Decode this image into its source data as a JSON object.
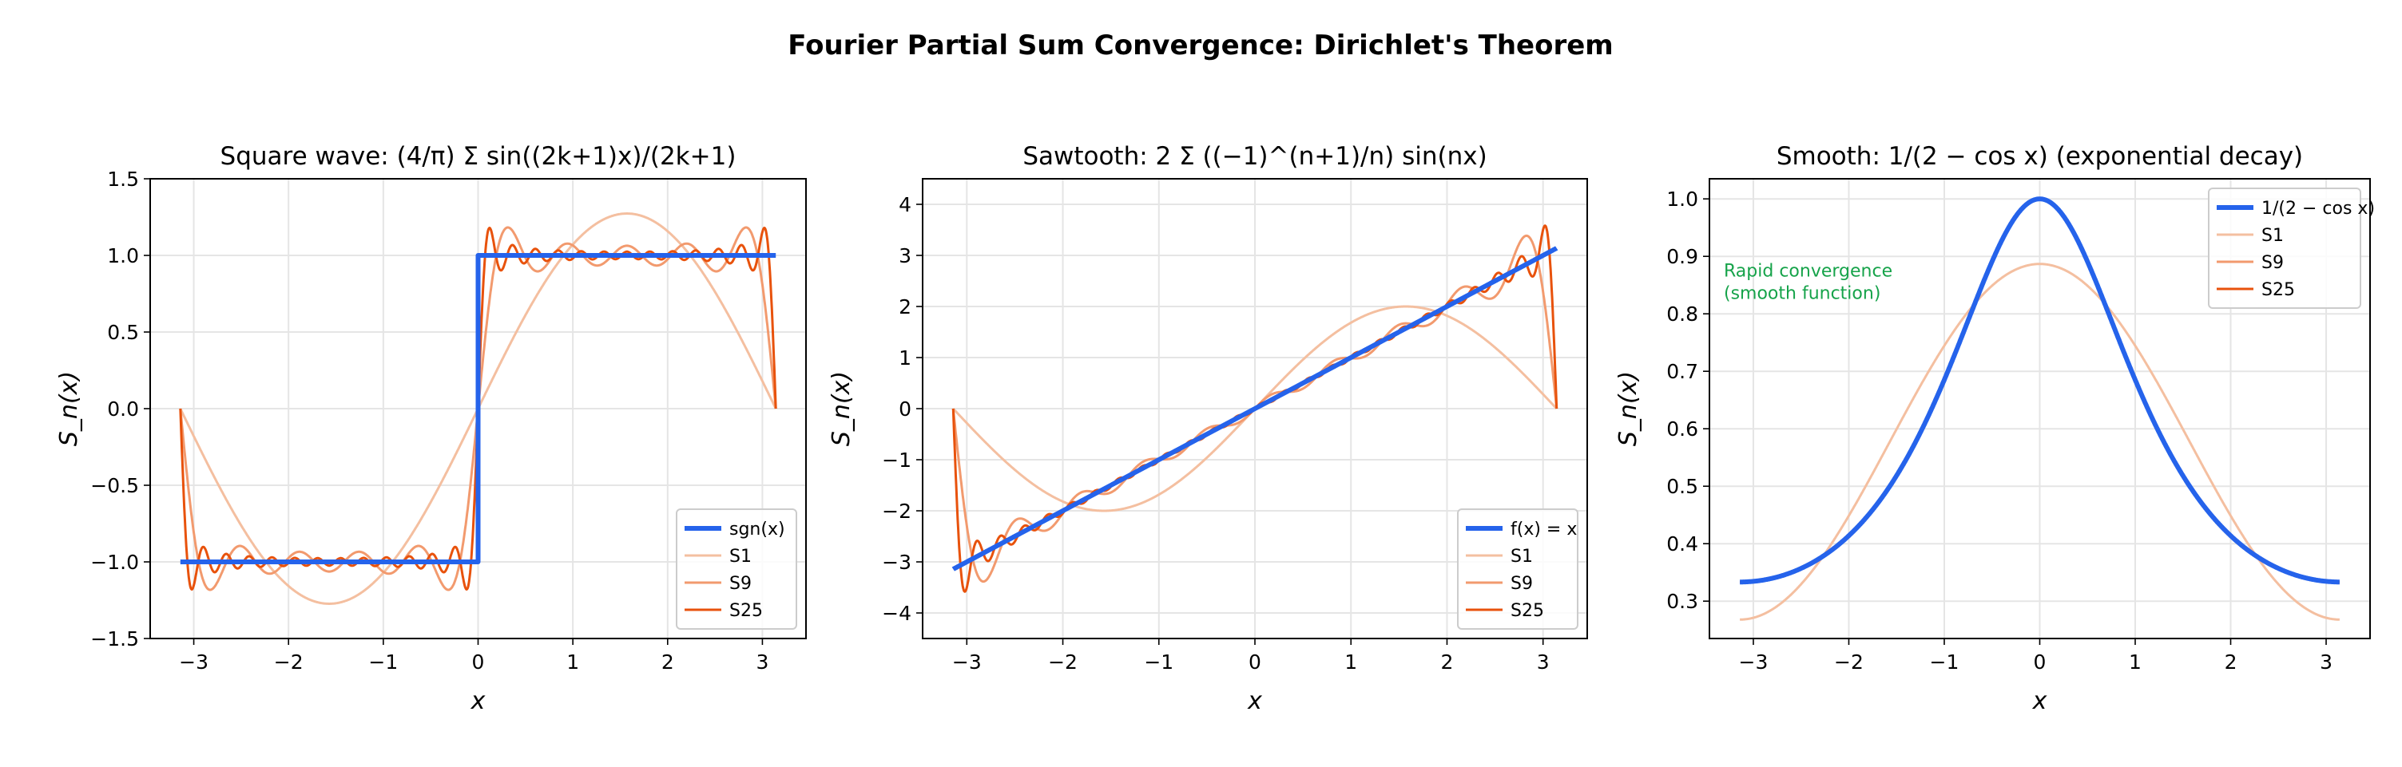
{
  "title": "Fourier Partial Sum Convergence: Dirichlet's Theorem",
  "colors": {
    "target": "#2563eb",
    "S1": "#f4bfa0",
    "S9": "#f29a6e",
    "S25": "#e8520c",
    "annotation": "#16a34a",
    "grid": "#e5e5e5"
  },
  "chart_data": [
    {
      "type": "line",
      "title": "Square wave: (4/π) Σ sin((2k+1)x)/(2k+1)",
      "xlabel": "x",
      "ylabel": "S_n(x)",
      "xlim": [
        -3.46,
        3.46
      ],
      "ylim": [
        -1.5,
        1.5
      ],
      "xticks": [
        "−3",
        "−2",
        "−1",
        "0",
        "1",
        "2",
        "3"
      ],
      "yticks": [
        "−1.5",
        "−1.0",
        "−0.5",
        "0.0",
        "0.5",
        "1.0",
        "1.5"
      ],
      "ytick_values": [
        -1.5,
        -1,
        -0.5,
        0,
        0.5,
        1,
        1.5
      ],
      "grid": true,
      "legend": "lower-right",
      "function": "square",
      "series": [
        {
          "name": "sgn(x)",
          "role": "target"
        },
        {
          "name": "S1",
          "terms": 1
        },
        {
          "name": "S9",
          "terms": 9
        },
        {
          "name": "S25",
          "terms": 25
        }
      ]
    },
    {
      "type": "line",
      "title": "Sawtooth: 2 Σ ((−1)^(n+1)/n) sin(nx)",
      "xlabel": "x",
      "ylabel": "S_n(x)",
      "xlim": [
        -3.46,
        3.46
      ],
      "ylim": [
        -4.5,
        4.5
      ],
      "xticks": [
        "−3",
        "−2",
        "−1",
        "0",
        "1",
        "2",
        "3"
      ],
      "yticks": [
        "−4",
        "−3",
        "−2",
        "−1",
        "0",
        "1",
        "2",
        "3",
        "4"
      ],
      "ytick_values": [
        -4,
        -3,
        -2,
        -1,
        0,
        1,
        2,
        3,
        4
      ],
      "grid": true,
      "legend": "lower-right",
      "function": "sawtooth",
      "series": [
        {
          "name": "f(x) = x",
          "role": "target"
        },
        {
          "name": "S1",
          "terms": 1
        },
        {
          "name": "S9",
          "terms": 9
        },
        {
          "name": "S25",
          "terms": 25
        }
      ]
    },
    {
      "type": "line",
      "title": "Smooth: 1/(2 − cos x) (exponential decay)",
      "xlabel": "x",
      "ylabel": "S_n(x)",
      "xlim": [
        -3.46,
        3.46
      ],
      "ylim": [
        0.235,
        1.035
      ],
      "xticks": [
        "−3",
        "−2",
        "−1",
        "0",
        "1",
        "2",
        "3"
      ],
      "yticks": [
        "0.3",
        "0.4",
        "0.5",
        "0.6",
        "0.7",
        "0.8",
        "0.9",
        "1.0"
      ],
      "ytick_values": [
        0.3,
        0.4,
        0.5,
        0.6,
        0.7,
        0.8,
        0.9,
        1.0
      ],
      "grid": true,
      "legend": "upper-right",
      "function": "smooth",
      "annotation": [
        "Rapid convergence",
        "(smooth function)"
      ],
      "series": [
        {
          "name": "1/(2 − cos x)",
          "role": "target"
        },
        {
          "name": "S1",
          "terms": 1
        },
        {
          "name": "S9",
          "terms": 9
        },
        {
          "name": "S25",
          "terms": 25
        }
      ]
    }
  ]
}
